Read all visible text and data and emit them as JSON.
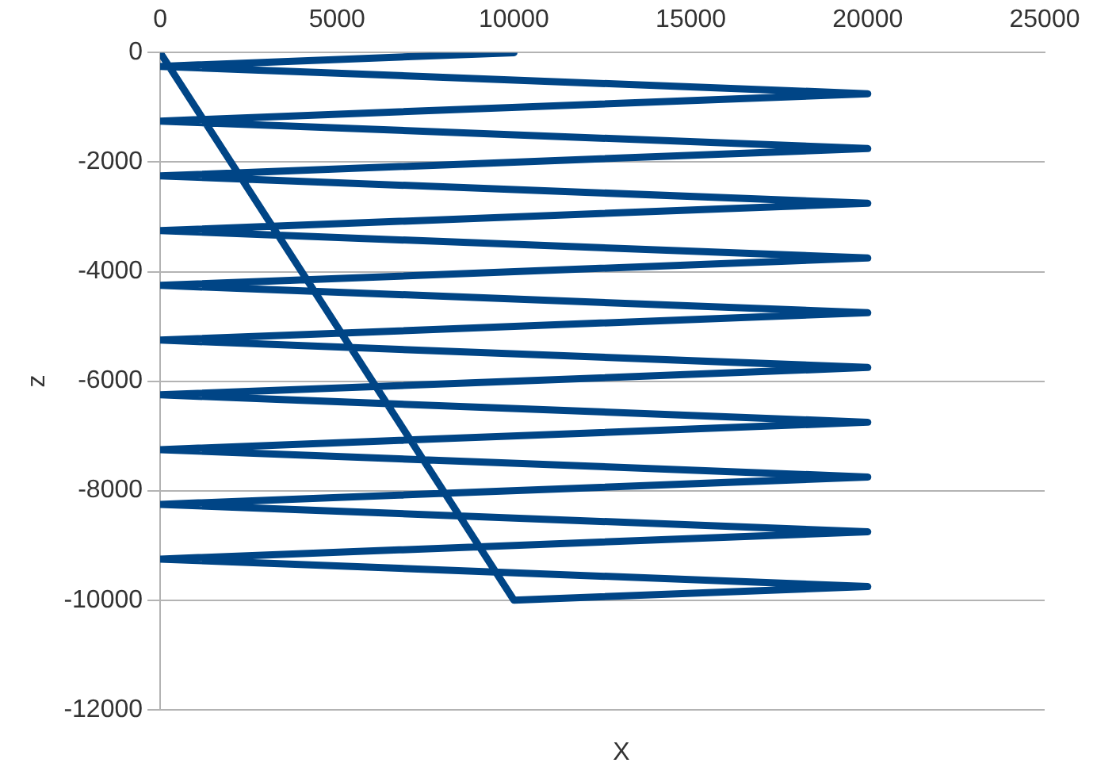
{
  "chart_data": {
    "type": "line",
    "xlabel": "X",
    "ylabel": "z",
    "x": [
      10000,
      0,
      20000,
      0,
      20000,
      0,
      20000,
      0,
      20000,
      0,
      20000,
      0,
      20000,
      0,
      20000,
      0,
      20000,
      0,
      20000,
      0,
      20000,
      10000,
      0
    ],
    "series": [
      {
        "color": "#004586",
        "values": [
          0,
          -250,
          -750,
          -1250,
          -1750,
          -2250,
          -2750,
          -3250,
          -3750,
          -4250,
          -4750,
          -5250,
          -5750,
          -6250,
          -6750,
          -7250,
          -7750,
          -8250,
          -8750,
          -9250,
          -9750,
          -10000,
          0
        ]
      }
    ],
    "xlim": [
      0,
      25000
    ],
    "xticks": [
      0,
      5000,
      10000,
      15000,
      20000,
      25000
    ],
    "ylim": [
      -12000,
      0
    ],
    "yticks": [
      -12000,
      -10000,
      -8000,
      -6000,
      -4000,
      -2000,
      0
    ],
    "grid": "y",
    "legend": false,
    "marker": "none",
    "line_style": "solid"
  }
}
